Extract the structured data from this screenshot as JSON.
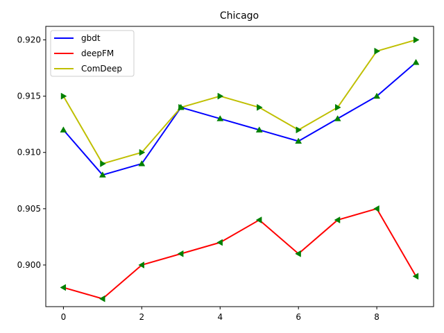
{
  "chart_data": {
    "type": "line",
    "title": "Chicago",
    "xlabel": "",
    "ylabel": "",
    "x": [
      0,
      1,
      2,
      3,
      4,
      5,
      6,
      7,
      8,
      9
    ],
    "xlim": [
      -0.45,
      9.45
    ],
    "ylim": [
      0.8963,
      0.9212
    ],
    "xticks": [
      0,
      2,
      4,
      6,
      8
    ],
    "yticks": [
      0.9,
      0.905,
      0.91,
      0.915,
      0.92
    ],
    "ytick_labels": [
      "0.900",
      "0.905",
      "0.910",
      "0.915",
      "0.920"
    ],
    "grid": false,
    "legend_position": "upper-left",
    "marker_color": "#008000",
    "series": [
      {
        "name": "gbdt",
        "color": "#0000ff",
        "marker": "triangle-up",
        "values": [
          0.912,
          0.908,
          0.909,
          0.914,
          0.913,
          0.912,
          0.911,
          0.913,
          0.915,
          0.918
        ]
      },
      {
        "name": "deepFM",
        "color": "#ff0000",
        "marker": "triangle-left",
        "values": [
          0.898,
          0.897,
          0.9,
          0.901,
          0.902,
          0.904,
          0.901,
          0.904,
          0.905,
          0.899
        ]
      },
      {
        "name": "ComDeep",
        "color": "#bfbf00",
        "marker": "triangle-right",
        "values": [
          0.915,
          0.909,
          0.91,
          0.914,
          0.915,
          0.914,
          0.912,
          0.914,
          0.919,
          0.92
        ]
      }
    ]
  }
}
